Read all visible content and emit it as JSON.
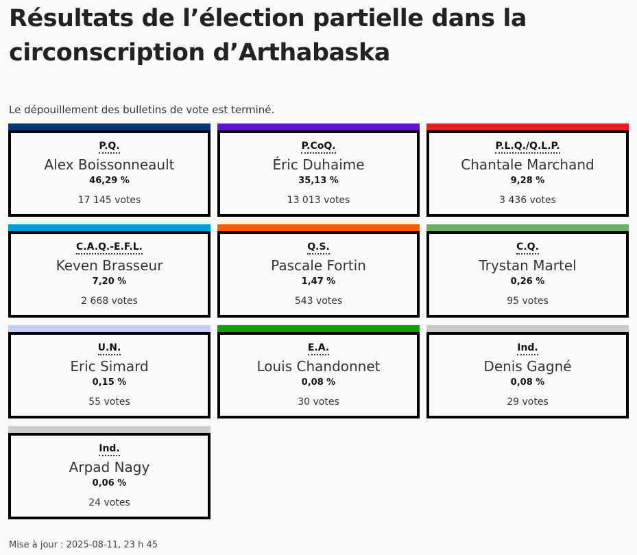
{
  "title": "Résultats de l’élection partielle dans la circonscription d’Arthabaska",
  "status": "Le dépouillement des bulletins de vote est terminé.",
  "updated": "Mise à jour : 2025-08-11, 23 h 45",
  "candidates": [
    {
      "party": "P.Q.",
      "name": "Alex Boissonneault",
      "pct": "46,29 %",
      "votes": "17 145 votes",
      "color": "#06357a"
    },
    {
      "party": "P.CoQ.",
      "name": "Éric Duhaime",
      "pct": "35,13 %",
      "votes": "13 013 votes",
      "color": "#6214d3"
    },
    {
      "party": "P.L.Q./Q.L.P.",
      "name": "Chantale Marchand",
      "pct": "9,28 %",
      "votes": "3 436 votes",
      "color": "#ec1c24"
    },
    {
      "party": "C.A.Q.-E.F.L.",
      "name": "Keven Brasseur",
      "pct": "7,20 %",
      "votes": "2 668 votes",
      "color": "#009ee0"
    },
    {
      "party": "Q.S.",
      "name": "Pascale Fortin",
      "pct": "1,47 %",
      "votes": "543 votes",
      "color": "#ff5a00"
    },
    {
      "party": "C.Q.",
      "name": "Trystan Martel",
      "pct": "0,26 %",
      "votes": "95 votes",
      "color": "#6ab162"
    },
    {
      "party": "U.N.",
      "name": "Eric Simard",
      "pct": "0,15 %",
      "votes": "55 votes",
      "color": "#c8cff8"
    },
    {
      "party": "E.A.",
      "name": "Louis Chandonnet",
      "pct": "0,08 %",
      "votes": "30 votes",
      "color": "#0aa40a"
    },
    {
      "party": "Ind.",
      "name": "Denis Gagné",
      "pct": "0,08 %",
      "votes": "29 votes",
      "color": "#cccccc"
    },
    {
      "party": "Ind.",
      "name": "Arpad Nagy",
      "pct": "0,06 %",
      "votes": "24 votes",
      "color": "#cccccc"
    }
  ]
}
